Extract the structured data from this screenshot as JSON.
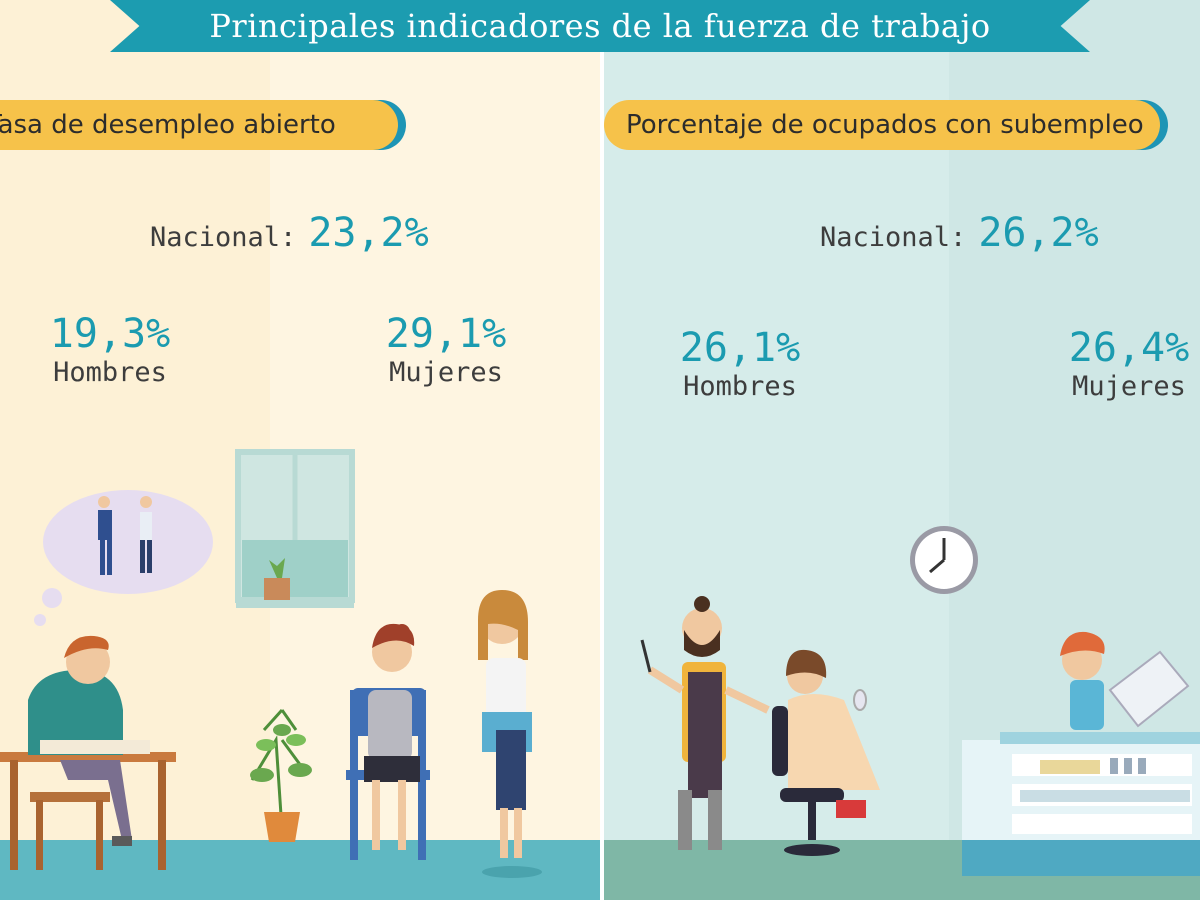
{
  "title": "Principales indicadores de la fuerza de trabajo",
  "left": {
    "header": "Tasa de desempleo abierto",
    "nacional_label": "Nacional:",
    "nacional_value": "23,2%",
    "men_value": "19,3%",
    "men_label": "Hombres",
    "women_value": "29,1%",
    "women_label": "Mujeres"
  },
  "right": {
    "header": "Porcentaje de ocupados con subempleo",
    "nacional_label": "Nacional:",
    "nacional_value": "26,2%",
    "men_value": "26,1%",
    "men_label": "Hombres",
    "women_value": "26,4%",
    "women_label": "Mujeres"
  },
  "colors": {
    "accent": "#1b9bb0",
    "banner": "#1c9cb0",
    "header_pill": "#f6c24a",
    "left_bg": "#fdf1d6",
    "right_bg": "#d6ecea"
  }
}
